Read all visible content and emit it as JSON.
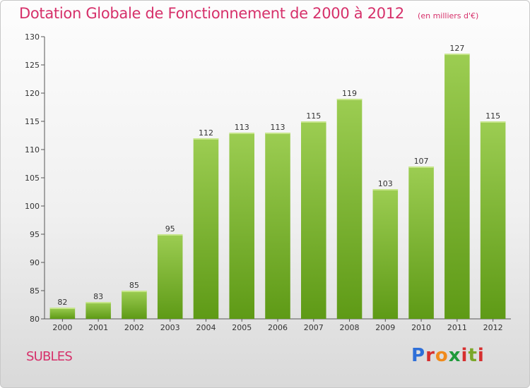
{
  "chart_data": {
    "type": "bar",
    "title": "Dotation Globale de Fonctionnement de 2000 à 2012",
    "subtitle": "(en milliers d'€)",
    "categories": [
      "2000",
      "2001",
      "2002",
      "2003",
      "2004",
      "2005",
      "2006",
      "2007",
      "2008",
      "2009",
      "2010",
      "2011",
      "2012"
    ],
    "values": [
      82,
      83,
      85,
      95,
      112,
      113,
      113,
      115,
      119,
      103,
      107,
      127,
      115
    ],
    "ylim": [
      80,
      130
    ],
    "yticks": [
      80,
      85,
      90,
      95,
      100,
      105,
      110,
      115,
      120,
      125,
      130
    ],
    "grid": false,
    "bar_color_top": "#9ccd52",
    "bar_color_bottom": "#5e9a16"
  },
  "footer": {
    "commune": "SUBLES",
    "logo": "Proxiti"
  },
  "colors": {
    "title": "#d6306a",
    "axis": "#555555"
  }
}
